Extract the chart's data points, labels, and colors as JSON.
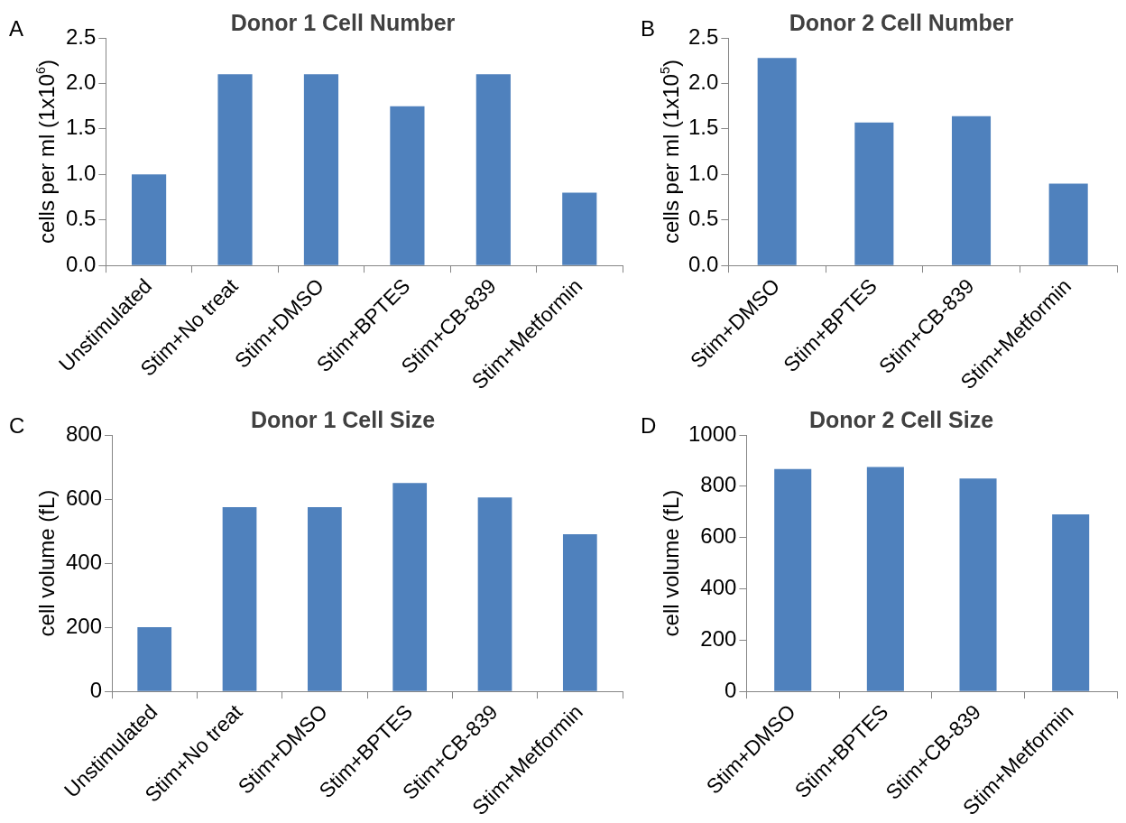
{
  "chart_data": [
    {
      "type": "bar",
      "title": "Donor 1 Cell Number",
      "ylabel": "cells per ml (1x10$^{6}$)",
      "annotations": [
        "A"
      ],
      "categories": [
        "Unstimulated",
        "Stim+No treat",
        "Stim+DMSO",
        "Stim+BPTES",
        "Stim+CB-839",
        "Stim+Metformin"
      ],
      "values": [
        1.0,
        2.1,
        2.1,
        1.75,
        2.1,
        0.8
      ],
      "color": "#4f81bd",
      "ylim": [
        0,
        2.5
      ],
      "yticks": [
        {
          "value": 0,
          "label": "0.0"
        },
        {
          "value": 0.5,
          "label": "0.5"
        },
        {
          "value": 1,
          "label": "1.0"
        },
        {
          "value": 1.5,
          "label": "1.5"
        },
        {
          "value": 2,
          "label": "2.0"
        },
        {
          "value": 2.5,
          "label": "2.5"
        }
      ]
    },
    {
      "type": "bar",
      "title": "Donor 2 Cell Number",
      "ylabel": "cells per ml (1x10$^{5}$)",
      "annotations": [
        "B"
      ],
      "categories": [
        "Stim+DMSO",
        "Stim+BPTES",
        "Stim+CB-839",
        "Stim+Metformin"
      ],
      "values": [
        2.28,
        1.57,
        1.64,
        0.9
      ],
      "color": "#4f81bd",
      "ylim": [
        0,
        2.5
      ],
      "yticks": [
        {
          "value": 0,
          "label": "0.0"
        },
        {
          "value": 0.5,
          "label": "0.5"
        },
        {
          "value": 1,
          "label": "1.0"
        },
        {
          "value": 1.5,
          "label": "1.5"
        },
        {
          "value": 2,
          "label": "2.0"
        },
        {
          "value": 2.5,
          "label": "2.5"
        }
      ]
    },
    {
      "type": "bar",
      "title": "Donor 1 Cell Size",
      "ylabel": "cell volume (fL)",
      "annotations": [
        "C"
      ],
      "categories": [
        "Unstimulated",
        "Stim+No treat",
        "Stim+DMSO",
        "Stim+BPTES",
        "Stim+CB-839",
        "Stim+Metformin"
      ],
      "values": [
        200,
        575,
        575,
        650,
        605,
        490
      ],
      "color": "#4f81bd",
      "ylim": [
        0,
        800
      ],
      "yticks": [
        0,
        200,
        400,
        600,
        800
      ]
    },
    {
      "type": "bar",
      "title": "Donor 2 Cell Size",
      "ylabel": "cell volume (fL)",
      "annotations": [
        "D"
      ],
      "categories": [
        "Stim+DMSO",
        "Stim+BPTES",
        "Stim+CB-839",
        "Stim+Metformin"
      ],
      "values": [
        867,
        875,
        830,
        690
      ],
      "color": "#4f81bd",
      "ylim": [
        0,
        1000
      ],
      "yticks": [
        0,
        200,
        400,
        600,
        800,
        1000
      ]
    }
  ]
}
